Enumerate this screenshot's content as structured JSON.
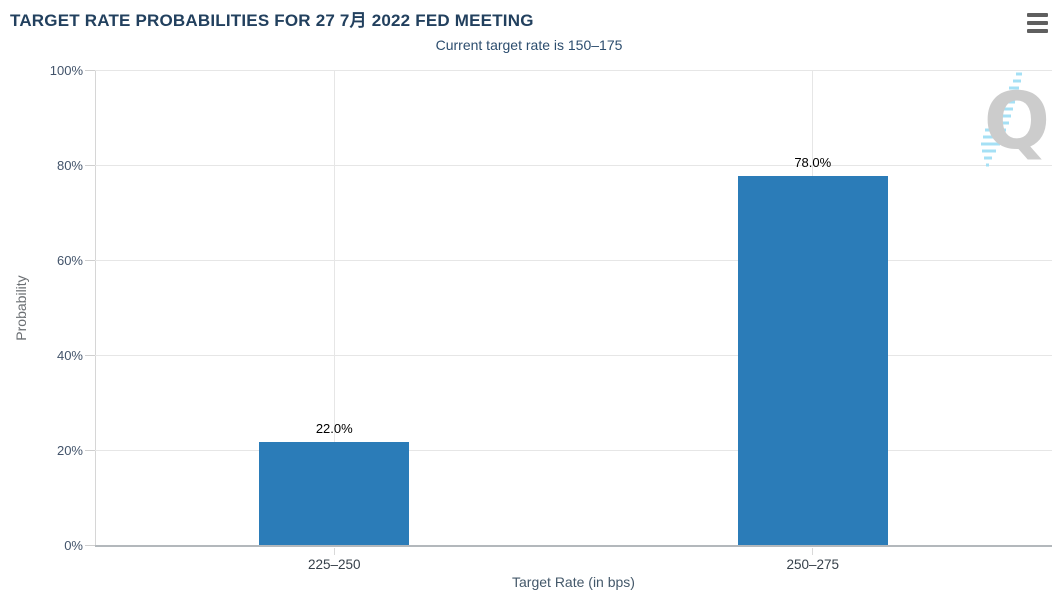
{
  "header": {
    "title": "TARGET RATE PROBABILITIES FOR 27 7月 2022 FED MEETING",
    "subtitle": "Current target rate is 150–175",
    "menu_icon": "hamburger-menu-icon"
  },
  "chart_data": {
    "type": "bar",
    "title": "TARGET RATE PROBABILITIES FOR 27 7月 2022 FED MEETING",
    "subtitle": "Current target rate is 150–175",
    "categories": [
      "225–250",
      "250–275"
    ],
    "values": [
      22.0,
      78.0
    ],
    "value_labels": [
      "22.0%",
      "78.0%"
    ],
    "xlabel": "Target Rate (in bps)",
    "ylabel": "Probability",
    "ylim": [
      0,
      100
    ],
    "yticks": [
      0,
      20,
      40,
      60,
      80,
      100
    ],
    "ytick_labels": [
      "0%",
      "20%",
      "40%",
      "60%",
      "80%",
      "100%"
    ],
    "grid": true,
    "legend": "none",
    "bar_color": "#2b7cb8"
  },
  "watermark": {
    "letter": "Q"
  },
  "colors": {
    "bar": "#2b7cb8",
    "title_text": "#22405e",
    "subtitle_text": "#2c4d6e",
    "gridline": "#e6e6e6",
    "axis_line": "#b3b8bc",
    "data_label": "#000000",
    "watermark_gray": "#cccccc",
    "watermark_blue": "#a5e0f5"
  }
}
